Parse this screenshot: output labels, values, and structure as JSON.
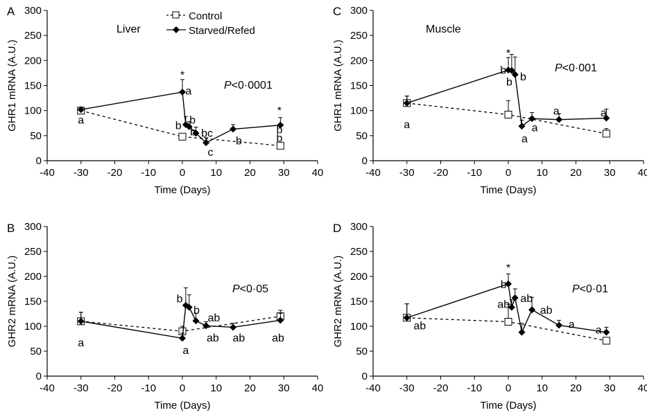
{
  "chart_data": [
    {
      "type": "line",
      "panel_letter": "A",
      "title": "Liver",
      "xlabel": "Time (Days)",
      "ylabel": "GHR1 mRNA (A.U.)",
      "xlim": [
        -40,
        40
      ],
      "ylim": [
        0,
        300
      ],
      "xticks": [
        -40,
        -30,
        -20,
        -10,
        0,
        10,
        20,
        30,
        40
      ],
      "yticks": [
        0,
        50,
        100,
        150,
        200,
        250,
        300
      ],
      "pvalue": {
        "prefix": "P",
        "text": "<0·0001"
      },
      "legend": {
        "placement": "top",
        "entries": [
          "Control",
          "Starved/Refed"
        ]
      },
      "series": [
        {
          "name": "Control",
          "style": "dashed-open-square",
          "x": [
            -30,
            0,
            29
          ],
          "y": [
            100,
            48,
            30
          ],
          "err": [
            5,
            6,
            5
          ]
        },
        {
          "name": "Starved/Refed",
          "style": "solid-filled-diamond",
          "x": [
            -30,
            0,
            1,
            2,
            4,
            7,
            15,
            29
          ],
          "y": [
            102,
            137,
            72,
            68,
            55,
            36,
            63,
            71
          ],
          "err": [
            5,
            25,
            16,
            10,
            12,
            10,
            9,
            15
          ]
        }
      ],
      "annotations": [
        {
          "text": "a",
          "x": -30,
          "y": 82
        },
        {
          "text": "*",
          "x": 0,
          "y": 172
        },
        {
          "text": "a",
          "x": 1.8,
          "y": 140
        },
        {
          "text": "b",
          "x": -1.2,
          "y": 71
        },
        {
          "text": "b",
          "x": 3,
          "y": 82
        },
        {
          "text": "b",
          "x": 3.2,
          "y": 59
        },
        {
          "text": "bc",
          "x": 7.3,
          "y": 56
        },
        {
          "text": "c",
          "x": 8.3,
          "y": 18
        },
        {
          "text": "b",
          "x": 16.7,
          "y": 41
        },
        {
          "text": "*",
          "x": 28.7,
          "y": 101
        },
        {
          "text": "b",
          "x": 28.7,
          "y": 63
        },
        {
          "text": "b",
          "x": 28.7,
          "y": 46
        }
      ]
    },
    {
      "type": "line",
      "panel_letter": "C",
      "title": "Muscle",
      "xlabel": "Time (Days)",
      "ylabel": "GHR1 mRNA (A.U.)",
      "xlim": [
        -40,
        40
      ],
      "ylim": [
        0,
        300
      ],
      "xticks": [
        -40,
        -30,
        -20,
        -10,
        0,
        10,
        20,
        30,
        40
      ],
      "yticks": [
        0,
        50,
        100,
        150,
        200,
        250,
        300
      ],
      "pvalue": {
        "prefix": "P",
        "text": "<0·001"
      },
      "series": [
        {
          "name": "Control",
          "style": "dashed-open-square",
          "x": [
            -30,
            0,
            29
          ],
          "y": [
            115,
            92,
            54
          ],
          "err": [
            14,
            28,
            10
          ]
        },
        {
          "name": "Starved/Refed",
          "style": "solid-filled-diamond",
          "x": [
            -30,
            0,
            1,
            2,
            4,
            7,
            15,
            29
          ],
          "y": [
            115,
            181,
            180,
            172,
            69,
            84,
            82,
            85
          ],
          "err": [
            14,
            25,
            32,
            35,
            12,
            12,
            12,
            18
          ]
        }
      ],
      "annotations": [
        {
          "text": "a",
          "x": -30,
          "y": 73
        },
        {
          "text": "*",
          "x": 0,
          "y": 216
        },
        {
          "text": "b",
          "x": -1.5,
          "y": 182
        },
        {
          "text": "b",
          "x": 0.3,
          "y": 158
        },
        {
          "text": "b",
          "x": 4.4,
          "y": 169
        },
        {
          "text": "a",
          "x": 4.8,
          "y": 45
        },
        {
          "text": "a",
          "x": 7.8,
          "y": 67
        },
        {
          "text": "a",
          "x": 14.2,
          "y": 100
        },
        {
          "text": "a",
          "x": 28.2,
          "y": 97
        }
      ]
    },
    {
      "type": "line",
      "panel_letter": "B",
      "title": "",
      "xlabel": "Time (Days)",
      "ylabel": "GHR2 mRNA (A.U.)",
      "xlim": [
        -40,
        40
      ],
      "ylim": [
        0,
        300
      ],
      "xticks": [
        -40,
        -30,
        -20,
        -10,
        0,
        10,
        20,
        30,
        40
      ],
      "yticks": [
        0,
        50,
        100,
        150,
        200,
        250,
        300
      ],
      "pvalue": {
        "prefix": "P",
        "text": "<0·05"
      },
      "series": [
        {
          "name": "Control",
          "style": "dashed-open-square",
          "x": [
            -30,
            0,
            29
          ],
          "y": [
            110,
            90,
            120
          ],
          "err": [
            18,
            10,
            12
          ]
        },
        {
          "name": "Starved/Refed",
          "style": "solid-filled-diamond",
          "x": [
            -30,
            0,
            1,
            2,
            4,
            7,
            15,
            29
          ],
          "y": [
            110,
            76,
            142,
            138,
            111,
            101,
            98,
            112
          ],
          "err": [
            18,
            10,
            35,
            25,
            15,
            8,
            8,
            14
          ]
        }
      ],
      "annotations": [
        {
          "text": "a",
          "x": -30,
          "y": 68
        },
        {
          "text": "a",
          "x": 1,
          "y": 53
        },
        {
          "text": "b",
          "x": -0.8,
          "y": 156
        },
        {
          "text": "b",
          "x": 4.2,
          "y": 133
        },
        {
          "text": "ab",
          "x": 9.3,
          "y": 118
        },
        {
          "text": "ab",
          "x": 9,
          "y": 78
        },
        {
          "text": "ab",
          "x": 16.7,
          "y": 78
        },
        {
          "text": "ab",
          "x": 28.3,
          "y": 78
        }
      ]
    },
    {
      "type": "line",
      "panel_letter": "D",
      "title": "",
      "xlabel": "Time (Days)",
      "ylabel": "GHR2 mRNA (A.U.)",
      "xlim": [
        -40,
        40
      ],
      "ylim": [
        0,
        300
      ],
      "xticks": [
        -40,
        -30,
        -20,
        -10,
        0,
        10,
        20,
        30,
        40
      ],
      "yticks": [
        0,
        50,
        100,
        150,
        200,
        250,
        300
      ],
      "pvalue": {
        "prefix": "P",
        "text": "<0·01"
      },
      "series": [
        {
          "name": "Control",
          "style": "dashed-open-square",
          "x": [
            -30,
            0,
            29
          ],
          "y": [
            117,
            109,
            71
          ],
          "err": [
            28,
            35,
            5
          ]
        },
        {
          "name": "Starved/Refed",
          "style": "solid-filled-diamond",
          "x": [
            -30,
            0,
            1,
            2,
            4,
            7,
            15,
            29
          ],
          "y": [
            117,
            185,
            138,
            157,
            88,
            133,
            102,
            88
          ],
          "err": [
            28,
            20,
            15,
            18,
            18,
            25,
            10,
            10
          ]
        }
      ],
      "annotations": [
        {
          "text": "ab",
          "x": -26.2,
          "y": 102
        },
        {
          "text": "*",
          "x": 0,
          "y": 218
        },
        {
          "text": "b",
          "x": -1.4,
          "y": 185
        },
        {
          "text": "ab",
          "x": -1.4,
          "y": 145
        },
        {
          "text": "ab",
          "x": 5.4,
          "y": 157
        },
        {
          "text": "ab",
          "x": 11.2,
          "y": 133
        },
        {
          "text": "a",
          "x": 18.7,
          "y": 105
        },
        {
          "text": "a",
          "x": 26.7,
          "y": 94
        }
      ]
    }
  ]
}
